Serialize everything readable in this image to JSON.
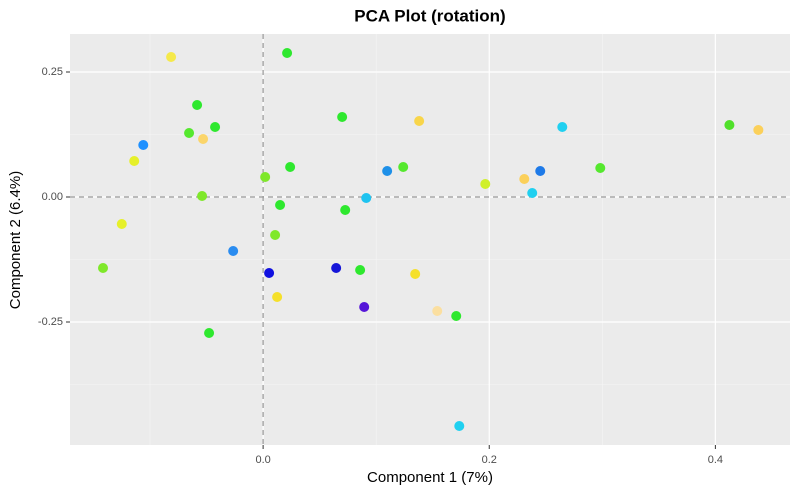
{
  "chart_data": {
    "type": "scatter",
    "title": "PCA Plot (rotation)",
    "x_label": "Component 1 (7%)",
    "y_label": "Component 2 (6.4%)",
    "xlim": [
      -0.1708,
      0.466
    ],
    "ylim": [
      -0.496,
      0.326
    ],
    "xticks": [
      {
        "value": 0,
        "label": "0.0"
      },
      {
        "value": 0.2,
        "label": "0.2"
      },
      {
        "value": 0.4,
        "label": "0.4"
      }
    ],
    "yticks": [
      {
        "value": -0.25,
        "label": "-0.25"
      },
      {
        "value": 0,
        "label": "0.00"
      },
      {
        "value": 0.25,
        "label": "0.25"
      }
    ],
    "x_minor": [
      -0.1,
      0.1,
      0.3
    ],
    "y_minor": [
      -0.375,
      -0.125,
      0.125
    ],
    "hlines": [
      0
    ],
    "vlines": [
      0
    ],
    "grid": true,
    "x": [
      -0.0814,
      0.0212,
      -0.0584,
      -0.0655,
      -0.0425,
      -0.0531,
      -0.106,
      -0.114,
      -0.054,
      -0.125,
      -0.1416,
      -0.0265,
      -0.0478,
      0.0018,
      0.015,
      0.0106,
      0.0124,
      0.0053,
      0.0239,
      0.0699,
      0.0726,
      0.0646,
      0.0858,
      0.0894,
      0.0912,
      0.1097,
      0.1239,
      0.138,
      0.1345,
      0.154,
      0.1708,
      0.1735,
      0.1965,
      0.231,
      0.238,
      0.2451,
      0.2646,
      0.2982,
      0.4124,
      0.438
    ],
    "values": [
      0.28,
      0.288,
      0.184,
      0.128,
      0.14,
      0.116,
      0.104,
      0.072,
      0.002,
      -0.054,
      -0.142,
      -0.108,
      -0.272,
      0.04,
      -0.016,
      -0.076,
      -0.2,
      -0.152,
      0.06,
      0.16,
      -0.026,
      -0.142,
      -0.146,
      -0.22,
      -0.002,
      0.052,
      0.06,
      0.152,
      -0.154,
      -0.228,
      -0.238,
      -0.458,
      0.026,
      0.036,
      0.008,
      0.052,
      0.14,
      0.058,
      0.144,
      0.134
    ],
    "colors": [
      "#f5e94a",
      "#2ee82e",
      "#2ee82e",
      "#55e82e",
      "#2ee82e",
      "#fbd56a",
      "#1e90ff",
      "#e6f02a",
      "#7fe82a",
      "#e6f02a",
      "#7fe82a",
      "#2a8cf0",
      "#2ee82e",
      "#7fe82a",
      "#2ee82e",
      "#7fe82a",
      "#f5e02a",
      "#1010e0",
      "#2ee82e",
      "#2ee82e",
      "#2ee82e",
      "#1515d8",
      "#2ee82e",
      "#5515d8",
      "#1ec3f0",
      "#1e90e8",
      "#55e82e",
      "#f8d54a",
      "#f5e02a",
      "#fbdfa0",
      "#2ee82e",
      "#20d0f0",
      "#d0f02a",
      "#fbd05a",
      "#20d0f0",
      "#1e7ae8",
      "#20d0f0",
      "#55e82e",
      "#50e02a",
      "#fbd05a"
    ]
  }
}
